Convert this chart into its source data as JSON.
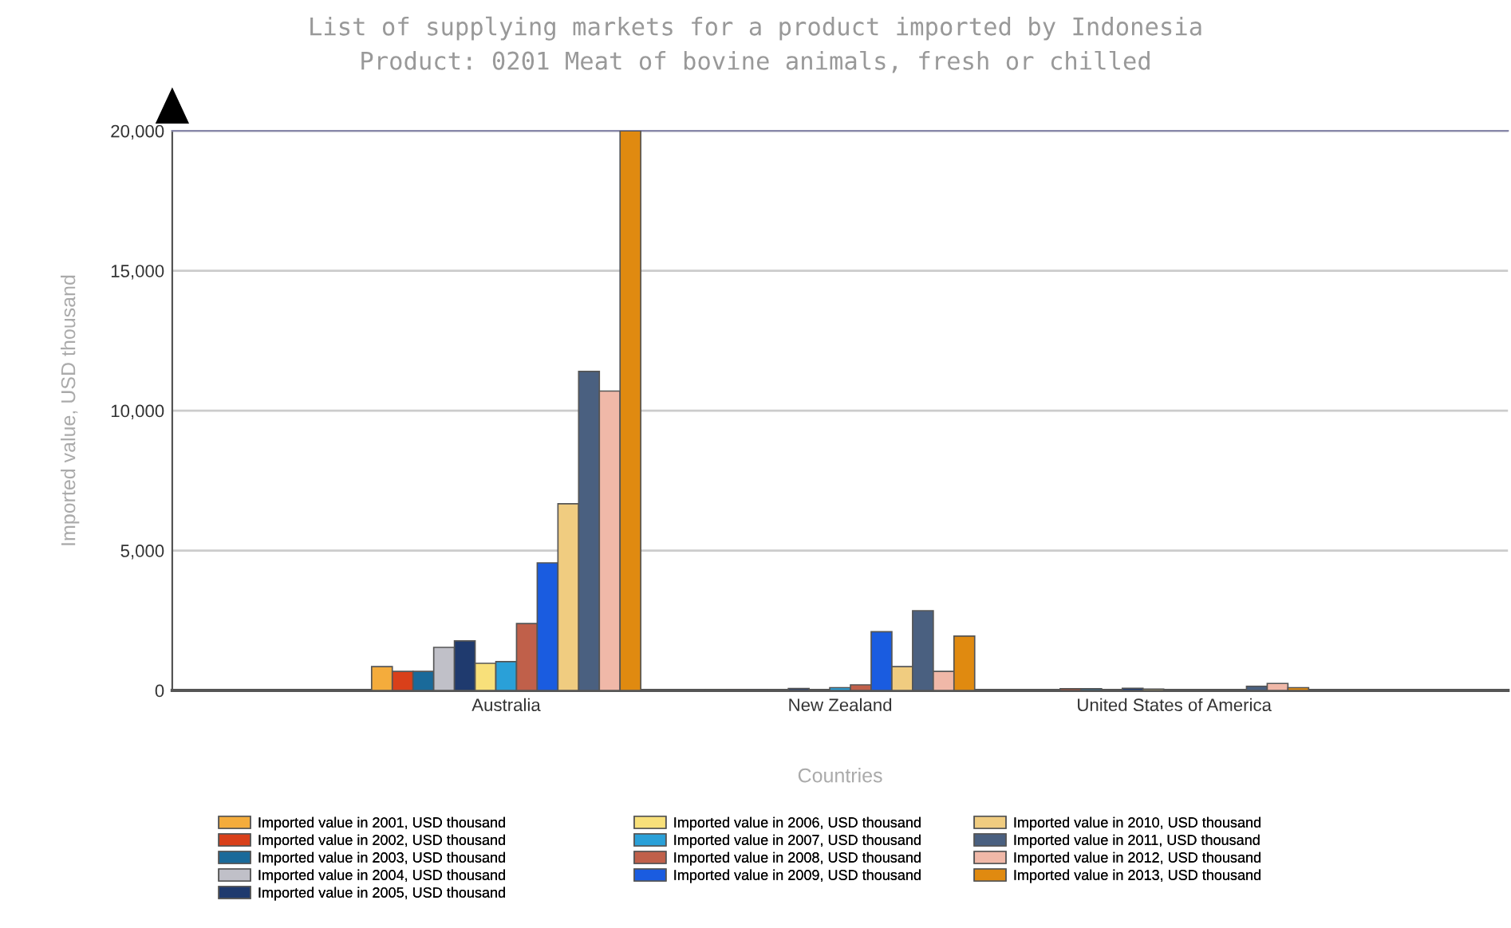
{
  "chart_data": {
    "type": "bar",
    "title": "List of supplying markets for a product imported by Indonesia",
    "subtitle": "Product: 0201 Meat of bovine animals, fresh or chilled",
    "xlabel": "Countries",
    "ylabel": "Imported value, USD thousand",
    "categories": [
      "Australia",
      "New Zealand",
      "United States of America"
    ],
    "series": [
      {
        "name": "Imported value in 2001, USD thousand",
        "color": "#f4ac3c",
        "values": [
          850,
          30,
          null
        ]
      },
      {
        "name": "Imported value in 2002, USD thousand",
        "color": "#d9401a",
        "values": [
          680,
          30,
          60
        ]
      },
      {
        "name": "Imported value in 2003, USD thousand",
        "color": "#1a6a9a",
        "values": [
          680,
          30,
          60
        ]
      },
      {
        "name": "Imported value in 2004, USD thousand",
        "color": "#c0c0c8",
        "values": [
          1540,
          30,
          null
        ]
      },
      {
        "name": "Imported value in 2005, USD thousand",
        "color": "#1f3a6e",
        "values": [
          1770,
          70,
          80
        ]
      },
      {
        "name": "Imported value in 2006, USD thousand",
        "color": "#f8e07a",
        "values": [
          970,
          20,
          50
        ]
      },
      {
        "name": "Imported value in 2007, USD thousand",
        "color": "#2aa0d8",
        "values": [
          1030,
          100,
          null
        ]
      },
      {
        "name": "Imported value in 2008, USD thousand",
        "color": "#c0604a",
        "values": [
          2390,
          200,
          null
        ]
      },
      {
        "name": "Imported value in 2009, USD thousand",
        "color": "#1a5ce0",
        "values": [
          4560,
          2100,
          null
        ]
      },
      {
        "name": "Imported value in 2010, USD thousand",
        "color": "#f0cc80",
        "values": [
          6670,
          850,
          null
        ]
      },
      {
        "name": "Imported value in 2011, USD thousand",
        "color": "#4a6080",
        "values": [
          11400,
          2850,
          150
        ]
      },
      {
        "name": "Imported value in 2012, USD thousand",
        "color": "#f0b8a8",
        "values": [
          10700,
          680,
          250
        ]
      },
      {
        "name": "Imported value in 2013, USD thousand",
        "color": "#e08a10",
        "values": [
          20000,
          1940,
          100
        ]
      }
    ],
    "ylim": [
      0,
      20000
    ],
    "yticks": [
      {
        "value": 0,
        "label": "0"
      },
      {
        "value": 5000,
        "label": "5,000"
      },
      {
        "value": 10000,
        "label": "10,000"
      },
      {
        "value": 15000,
        "label": "15,000"
      },
      {
        "value": 20000,
        "label": "20,000"
      }
    ],
    "grid": "y",
    "legend": "bottom"
  }
}
